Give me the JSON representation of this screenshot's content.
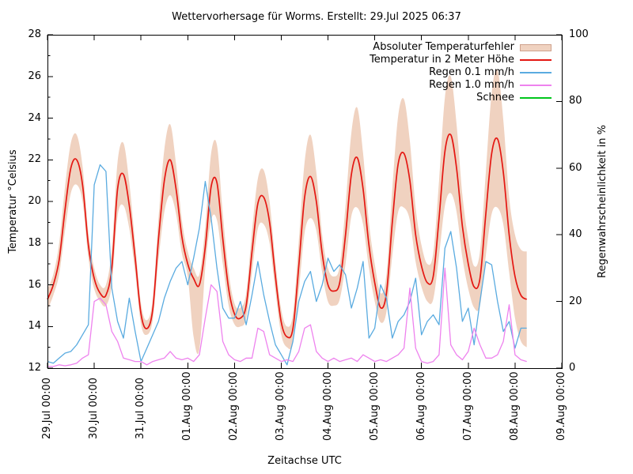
{
  "chart_data": {
    "type": "line",
    "title": "Wettervorhersage für Worms. Erstellt: 29.Jul 2025 06:37",
    "xlabel": "Zeitachse UTC",
    "ylabel_left": "Temperatur °Celsius",
    "ylabel_right": "Regenwahrscheinlichkeit in %",
    "x_step_hours": 3,
    "x_total_hours": 264,
    "x_tick_labels": [
      "29.Jul 00:00",
      "30.Jul 00:00",
      "31.Jul 00:00",
      "01.Aug 00:00",
      "02.Aug 00:00",
      "03.Aug 00:00",
      "04.Aug 00:00",
      "05.Aug 00:00",
      "06.Aug 00:00",
      "07.Aug 00:00",
      "08.Aug 00:00",
      "09.Aug 00:00"
    ],
    "ylim_left": [
      12,
      28
    ],
    "ytick_step_left": 2,
    "ytick_minor_step_left": 1,
    "ylim_right": [
      0,
      100
    ],
    "ytick_step_right": 20,
    "grid": false,
    "legend_position": "top-right-inside",
    "background_color": "#ffffff",
    "axis_color": "#000000",
    "series": [
      {
        "name": "Absoluter Temperaturfehler",
        "type": "band",
        "axis": "left",
        "color": "#f0d2c0",
        "border_color": "#cfa28d",
        "lo": [
          14.8,
          15.5,
          16.5,
          18.6,
          20.4,
          20.8,
          20.0,
          17.3,
          15.8,
          15.2,
          15.0,
          16.0,
          19.3,
          19.8,
          18.7,
          16.6,
          14.1,
          13.6,
          14.3,
          17.2,
          19.5,
          20.3,
          19.4,
          17.5,
          16.4,
          13.5,
          12.9,
          16.8,
          19.1,
          19.1,
          17.0,
          15.0,
          14.1,
          14.0,
          14.4,
          16.6,
          18.7,
          18.9,
          18.0,
          15.7,
          13.6,
          13.0,
          13.2,
          15.7,
          18.5,
          19.2,
          18.6,
          16.6,
          15.2,
          15.0,
          15.3,
          17.0,
          19.3,
          19.7,
          18.9,
          16.8,
          15.2,
          14.2,
          14.7,
          17.4,
          19.5,
          19.7,
          19.1,
          17.1,
          15.9,
          15.2,
          15.3,
          17.4,
          19.8,
          20.4,
          19.5,
          17.3,
          15.8,
          14.9,
          15.0,
          17.4,
          19.4,
          19.7,
          18.9,
          16.6,
          14.4,
          13.3,
          13.0
        ],
        "hi": [
          15.8,
          16.5,
          18.0,
          20.7,
          22.8,
          23.2,
          21.7,
          18.5,
          16.8,
          16.0,
          16.0,
          17.7,
          21.9,
          22.8,
          20.9,
          18.0,
          15.1,
          14.3,
          15.3,
          19.2,
          22.5,
          23.7,
          21.8,
          19.1,
          17.6,
          16.8,
          16.5,
          18.8,
          22.3,
          22.7,
          19.4,
          16.6,
          15.1,
          14.9,
          15.6,
          18.6,
          21.1,
          21.5,
          20.0,
          17.1,
          14.8,
          14.0,
          14.6,
          18.1,
          21.9,
          23.2,
          21.4,
          18.4,
          16.8,
          16.4,
          16.9,
          19.8,
          23.3,
          24.5,
          22.3,
          19.0,
          17.0,
          15.6,
          16.5,
          20.6,
          24.1,
          24.9,
          22.9,
          19.7,
          17.9,
          17.0,
          17.5,
          21.0,
          25.0,
          26.0,
          23.7,
          20.3,
          18.2,
          16.9,
          17.6,
          21.4,
          25.2,
          26.3,
          23.9,
          20.2,
          18.4,
          17.7,
          17.6
        ]
      },
      {
        "name": "Temperatur in 2 Meter Höhe",
        "type": "line",
        "axis": "left",
        "color": "#e41712",
        "values": [
          15.3,
          16.0,
          17.2,
          19.6,
          21.6,
          22.0,
          20.8,
          17.9,
          16.3,
          15.6,
          15.5,
          16.8,
          20.6,
          21.3,
          19.8,
          17.3,
          14.6,
          13.9,
          14.8,
          18.2,
          21.0,
          22.0,
          20.6,
          18.3,
          17.0,
          16.3,
          16.0,
          17.8,
          20.7,
          20.9,
          18.2,
          15.8,
          14.6,
          14.4,
          15.0,
          17.6,
          19.9,
          20.2,
          19.0,
          16.4,
          14.2,
          13.5,
          13.9,
          16.9,
          20.2,
          21.2,
          20.0,
          17.5,
          16.0,
          15.7,
          16.1,
          18.4,
          21.3,
          22.1,
          20.6,
          17.9,
          16.1,
          14.9,
          15.6,
          19.0,
          21.8,
          22.3,
          21.0,
          18.4,
          16.9,
          16.1,
          16.4,
          19.2,
          22.4,
          23.2,
          21.6,
          18.8,
          17.0,
          15.9,
          16.3,
          19.4,
          22.3,
          23.0,
          21.4,
          18.4,
          16.4,
          15.5,
          15.3
        ]
      },
      {
        "name": "Regen 0.1 mm/h",
        "type": "line",
        "axis": "right",
        "color": "#5aabe0",
        "values": [
          2,
          1.5,
          3,
          4.5,
          5,
          7,
          10,
          13,
          55,
          61,
          59,
          24,
          14,
          9,
          21,
          11,
          2,
          6,
          10,
          14,
          21,
          26,
          30,
          32,
          25,
          33,
          42,
          56,
          45,
          30,
          18,
          15,
          15,
          20,
          13,
          22,
          32,
          22,
          14,
          7,
          4,
          1,
          8,
          20,
          26,
          29,
          20,
          25,
          33,
          29,
          31,
          28,
          18,
          24,
          32,
          9,
          12,
          25,
          21,
          9,
          14,
          16,
          20,
          27,
          10,
          14,
          16,
          13,
          36,
          41,
          30,
          14,
          18,
          7,
          20,
          32,
          31,
          20,
          11,
          14,
          6,
          12,
          12
        ]
      },
      {
        "name": "Regen 1.0 mm/h",
        "type": "line",
        "axis": "right",
        "color": "#ee82ee",
        "values": [
          0.5,
          0.5,
          1,
          0.7,
          1,
          1.5,
          3,
          4,
          20,
          21,
          19,
          11,
          8,
          3,
          2.5,
          2,
          2,
          1,
          2,
          2.5,
          3,
          5,
          3,
          2.5,
          3,
          2,
          4,
          15,
          25,
          23,
          8,
          4,
          2.5,
          2,
          3,
          3,
          12,
          11,
          4,
          3,
          2,
          2.5,
          2,
          5,
          12,
          13,
          5,
          3,
          2,
          3,
          2,
          2.5,
          3,
          2,
          4,
          3,
          2,
          2.5,
          2,
          3,
          4,
          6,
          24,
          6,
          2,
          1.5,
          2,
          4,
          30,
          7,
          4,
          2.5,
          5,
          12,
          7,
          3,
          3,
          4,
          8,
          19,
          4,
          2.5,
          2
        ]
      },
      {
        "name": "Schnee",
        "type": "line",
        "axis": "right",
        "color": "#00c61c",
        "values": []
      }
    ]
  }
}
